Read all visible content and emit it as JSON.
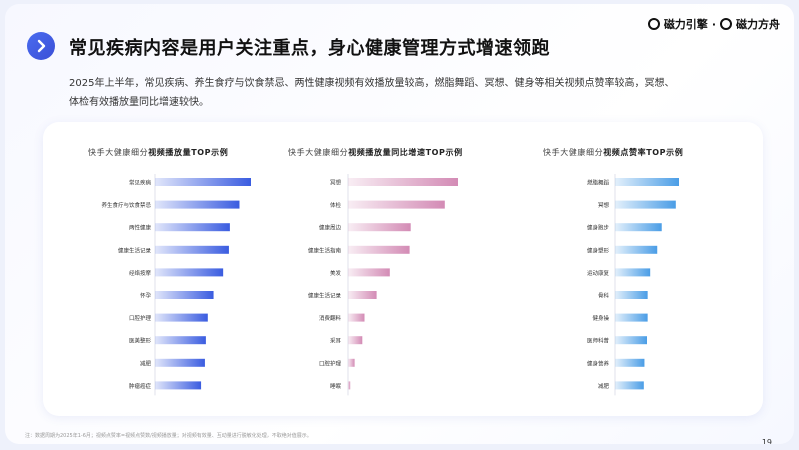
{
  "header": {
    "title": "常见疾病内容是用户关注重点，身心健康管理方式增速领跑",
    "brand_left": "磁力引擎",
    "brand_sep": "·",
    "brand_right": "磁力方舟",
    "description_line1": "2025年上半年，常见疾病、养生食疗与饮食禁忌、两性健康视频有效播放量较高，燃脂舞蹈、冥想、健身等相关视频点赞率较高，冥想、",
    "description_line2": "体检有效播放量同比增速较快。"
  },
  "footer": {
    "note": "注：数据周期为2025年1-6月；视频点赞率=视频点赞数/视频播放量；对视频有效量、互动量进行脱敏化处理，不取绝对值展示。",
    "page_number": "19"
  },
  "colors": {
    "accent": "#3b55d9",
    "bar_blue": "#3a5ce0",
    "bar_pink": "#d38bb5",
    "bar_sky": "#4a9de6"
  },
  "chart_data": [
    {
      "type": "bar",
      "orientation": "horizontal",
      "title_prefix": "快手大健康细分",
      "title_bold": "视频播放量TOP示例",
      "categories": [
        "常见疾病",
        "养生食疗与饮食禁忌",
        "两性健康",
        "健康生活记录",
        "经络按摩",
        "怀孕",
        "口腔护理",
        "医美整形",
        "减肥",
        "肿瘤癌症"
      ],
      "values": [
        100,
        88,
        78,
        77,
        71,
        61,
        55,
        53,
        52,
        48
      ],
      "xlim": [
        0,
        100
      ],
      "color": "#3a5ce0"
    },
    {
      "type": "bar",
      "orientation": "horizontal",
      "title_prefix": "快手大健康细分",
      "title_bold": "视频播放量同比增速TOP示例",
      "categories": [
        "冥想",
        "体检",
        "健康周边",
        "健康生活指南",
        "美发",
        "健康生活记录",
        "消费翻料",
        "采耳",
        "口腔护理",
        "睡眠"
      ],
      "values": [
        100,
        88,
        57,
        56,
        38,
        26,
        15,
        13,
        6,
        2
      ],
      "xlim": [
        0,
        100
      ],
      "color": "#d38bb5"
    },
    {
      "type": "bar",
      "orientation": "horizontal",
      "title_prefix": "快手大健康细分",
      "title_bold": "视频点赞率TOP示例",
      "categories": [
        "燃脂舞蹈",
        "冥想",
        "健身跑步",
        "健身塑形",
        "运动康复",
        "骨科",
        "健身操",
        "医师科普",
        "健身营养",
        "减肥"
      ],
      "values": [
        100,
        95,
        73,
        66,
        55,
        51,
        51,
        50,
        46,
        45
      ],
      "xlim": [
        0,
        100
      ],
      "color": "#4a9de6"
    }
  ]
}
